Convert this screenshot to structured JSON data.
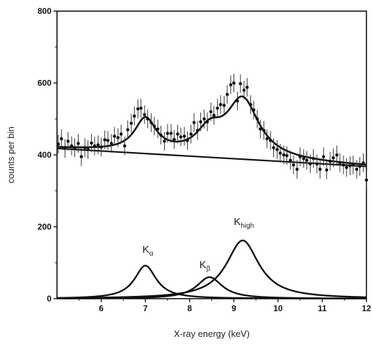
{
  "chart_data": {
    "type": "scatter",
    "xlabel": "X-ray energy (keV)",
    "ylabel": "counts per bin",
    "xlim": [
      5.0,
      12.0
    ],
    "ylim": [
      0,
      800
    ],
    "x_ticks": [
      "6",
      "7",
      "8",
      "9",
      "10",
      "11",
      "12"
    ],
    "y_ticks": [
      "0",
      "200",
      "400",
      "600",
      "800"
    ],
    "grid": false,
    "legend": "none",
    "series": [
      {
        "kind": "data-points-with-error-bars",
        "error": 26,
        "points": [
          [
            5.03,
            430
          ],
          [
            5.1,
            445
          ],
          [
            5.18,
            418
          ],
          [
            5.25,
            438
          ],
          [
            5.33,
            425
          ],
          [
            5.4,
            420
          ],
          [
            5.48,
            432
          ],
          [
            5.55,
            395
          ],
          [
            5.63,
            420
          ],
          [
            5.7,
            415
          ],
          [
            5.78,
            433
          ],
          [
            5.85,
            425
          ],
          [
            5.93,
            428
          ],
          [
            6.0,
            422
          ],
          [
            6.08,
            442
          ],
          [
            6.15,
            440
          ],
          [
            6.23,
            432
          ],
          [
            6.3,
            452
          ],
          [
            6.38,
            448
          ],
          [
            6.45,
            458
          ],
          [
            6.53,
            425
          ],
          [
            6.6,
            470
          ],
          [
            6.68,
            488
          ],
          [
            6.75,
            508
          ],
          [
            6.83,
            528
          ],
          [
            6.9,
            530
          ],
          [
            6.98,
            512
          ],
          [
            7.05,
            500
          ],
          [
            7.13,
            490
          ],
          [
            7.2,
            480
          ],
          [
            7.28,
            472
          ],
          [
            7.35,
            455
          ],
          [
            7.43,
            438
          ],
          [
            7.5,
            460
          ],
          [
            7.58,
            460
          ],
          [
            7.65,
            443
          ],
          [
            7.73,
            458
          ],
          [
            7.8,
            450
          ],
          [
            7.88,
            452
          ],
          [
            7.95,
            440
          ],
          [
            8.03,
            458
          ],
          [
            8.1,
            490
          ],
          [
            8.18,
            468
          ],
          [
            8.25,
            492
          ],
          [
            8.33,
            500
          ],
          [
            8.4,
            492
          ],
          [
            8.48,
            520
          ],
          [
            8.55,
            510
          ],
          [
            8.63,
            530
          ],
          [
            8.7,
            540
          ],
          [
            8.78,
            538
          ],
          [
            8.85,
            568
          ],
          [
            8.93,
            595
          ],
          [
            9.0,
            600
          ],
          [
            9.08,
            550
          ],
          [
            9.15,
            598
          ],
          [
            9.23,
            580
          ],
          [
            9.3,
            588
          ],
          [
            9.38,
            540
          ],
          [
            9.45,
            525
          ],
          [
            9.53,
            500
          ],
          [
            9.6,
            472
          ],
          [
            9.68,
            468
          ],
          [
            9.75,
            445
          ],
          [
            9.83,
            440
          ],
          [
            9.9,
            420
          ],
          [
            9.98,
            415
          ],
          [
            10.05,
            405
          ],
          [
            10.13,
            400
          ],
          [
            10.2,
            398
          ],
          [
            10.28,
            385
          ],
          [
            10.35,
            372
          ],
          [
            10.43,
            360
          ],
          [
            10.5,
            395
          ],
          [
            10.58,
            390
          ],
          [
            10.65,
            385
          ],
          [
            10.73,
            375
          ],
          [
            10.8,
            390
          ],
          [
            10.88,
            375
          ],
          [
            10.95,
            360
          ],
          [
            11.03,
            395
          ],
          [
            11.1,
            358
          ],
          [
            11.18,
            382
          ],
          [
            11.25,
            392
          ],
          [
            11.33,
            400
          ],
          [
            11.4,
            378
          ],
          [
            11.48,
            372
          ],
          [
            11.55,
            365
          ],
          [
            11.63,
            370
          ],
          [
            11.7,
            372
          ],
          [
            11.78,
            360
          ],
          [
            11.85,
            368
          ],
          [
            11.93,
            378
          ],
          [
            12.0,
            330
          ]
        ]
      },
      {
        "kind": "baseline",
        "line": [
          [
            5.0,
            418
          ],
          [
            12.0,
            368
          ]
        ]
      },
      {
        "kind": "peak",
        "name": "K",
        "subscript": "α",
        "center": 7.0,
        "amplitude": 92,
        "width": 0.3
      },
      {
        "kind": "peak",
        "name": "K",
        "subscript": "β",
        "center": 8.45,
        "amplitude": 60,
        "width": 0.35
      },
      {
        "kind": "peak",
        "name": "K",
        "subscript": "high",
        "center": 9.2,
        "amplitude": 162,
        "width": 0.45
      }
    ],
    "annotations": [
      {
        "text": "K",
        "subscript": "α",
        "x": 6.93,
        "y": 128
      },
      {
        "text": "K",
        "subscript": "β",
        "x": 8.22,
        "y": 85
      },
      {
        "text": "K",
        "subscript": "high",
        "x": 9.0,
        "y": 205
      }
    ]
  }
}
